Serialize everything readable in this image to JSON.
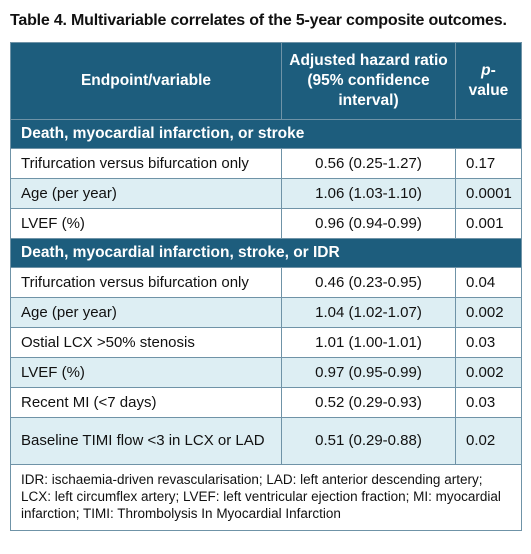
{
  "title": "Table 4. Multivariable correlates of the 5-year composite outcomes.",
  "columns": {
    "endpoint": "Endpoint/variable",
    "hr": "Adjusted hazard ratio (95% confidence interval)",
    "p_prefix": "p",
    "p_suffix": "-value"
  },
  "sections": [
    {
      "heading": "Death, myocardial infarction, or stroke",
      "rows": [
        {
          "variable": "Trifurcation versus bifurcation only",
          "hr": "0.56 (0.25-1.27)",
          "p": "0.17"
        },
        {
          "variable": "Age (per year)",
          "hr": "1.06 (1.03-1.10)",
          "p": "0.0001"
        },
        {
          "variable": "LVEF (%)",
          "hr": "0.96 (0.94-0.99)",
          "p": "0.001"
        }
      ]
    },
    {
      "heading": "Death, myocardial infarction, stroke, or IDR",
      "rows": [
        {
          "variable": "Trifurcation versus bifurcation only",
          "hr": "0.46 (0.23-0.95)",
          "p": "0.04"
        },
        {
          "variable": "Age (per year)",
          "hr": "1.04 (1.02-1.07)",
          "p": "0.002"
        },
        {
          "variable": "Ostial LCX >50% stenosis",
          "hr": "1.01 (1.00-1.01)",
          "p": "0.03"
        },
        {
          "variable": "LVEF (%)",
          "hr": "0.97 (0.95-0.99)",
          "p": "0.002"
        },
        {
          "variable": "Recent MI (<7 days)",
          "hr": "0.52 (0.29-0.93)",
          "p": "0.03"
        },
        {
          "variable": "Baseline TIMI flow <3 in LCX or LAD",
          "hr": "0.51 (0.29-0.88)",
          "p": "0.02"
        }
      ]
    }
  ],
  "footnote": "IDR: ischaemia-driven revascularisation; LAD: left anterior descending artery; LCX: left circumflex artery; LVEF: left ventricular ejection fraction; MI: myocardial infarction; TIMI: Thrombolysis In Myocardial Infarction",
  "colors": {
    "header_bg": "#1d5d7d",
    "stripe_bg": "#ddeef3",
    "border": "#6f93a7"
  }
}
